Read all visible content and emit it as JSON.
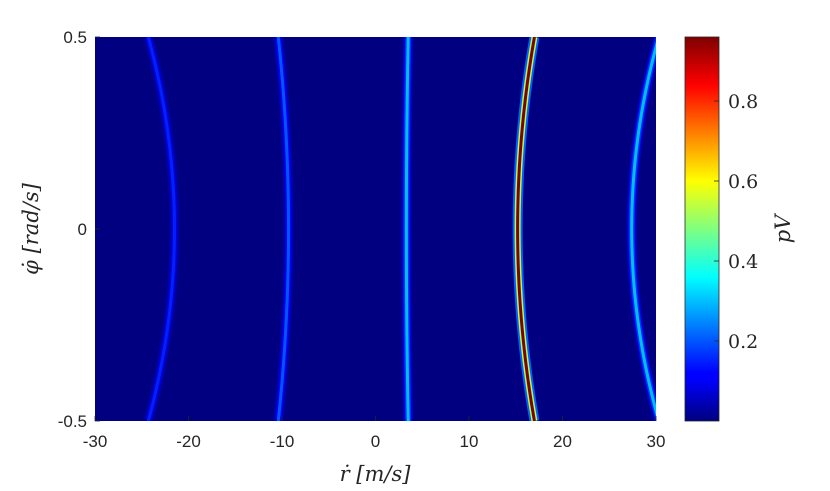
{
  "chart_data": {
    "type": "heatmap",
    "title": "",
    "xlabel": "ṙ [m/s]",
    "ylabel": "φ̇ [rad/s]",
    "colorbar_label": "pV",
    "colormap": "jet",
    "xlim": [
      -30,
      30
    ],
    "ylim": [
      -0.5,
      0.5
    ],
    "xticks": [
      -30,
      -20,
      -10,
      0,
      10,
      20,
      30
    ],
    "xtick_labels": [
      "-30",
      "-20",
      "-10",
      "0",
      "10",
      "20",
      "30"
    ],
    "yticks": [
      -0.5,
      0,
      0.5
    ],
    "ytick_labels": [
      "-0.5",
      "0",
      "0.5"
    ],
    "colorbar_range": [
      0.0,
      0.96
    ],
    "colorbar_ticks": [
      0.2,
      0.4,
      0.6,
      0.8
    ],
    "colorbar_tick_labels": [
      "0.2",
      "0.4",
      "0.6",
      "0.8"
    ],
    "background_value": 0.0,
    "ridges": [
      {
        "x_at_center": -21.5,
        "x_at_edges": -24.3,
        "peak_value": 0.15
      },
      {
        "x_at_center": -9.3,
        "x_at_edges": -10.4,
        "peak_value": 0.2
      },
      {
        "x_at_center": 3.3,
        "x_at_edges": 3.5,
        "peak_value": 0.3
      },
      {
        "x_at_center": 15.2,
        "x_at_edges": 17.0,
        "peak_value": 0.96
      },
      {
        "x_at_center": 27.4,
        "x_at_edges": 30.3,
        "peak_value": 0.3
      }
    ]
  }
}
